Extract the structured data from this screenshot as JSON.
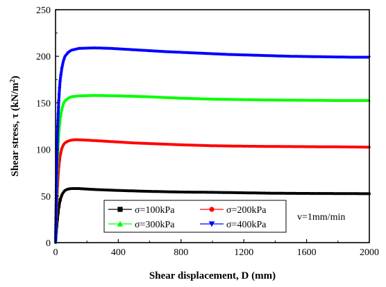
{
  "chart_data": {
    "type": "scatter",
    "xlabel": "Shear displacement, D (mm)",
    "ylabel_prefix": "Shear stress, τ (kN/m",
    "ylabel_sup": "2",
    "ylabel_suffix": ")",
    "xlim": [
      0,
      2000
    ],
    "ylim": [
      0,
      250
    ],
    "xticks": [
      0,
      400,
      800,
      1200,
      1600,
      2000
    ],
    "yticks": [
      0,
      50,
      100,
      150,
      200,
      250
    ],
    "grid": false,
    "legend_position": "bottom-center",
    "annotation": "v=1mm/min",
    "series": [
      {
        "name": "σ=100kPa",
        "color": "#000000",
        "marker": "square",
        "points": [
          [
            0,
            0
          ],
          [
            5,
            12
          ],
          [
            10,
            22
          ],
          [
            15,
            30
          ],
          [
            20,
            37
          ],
          [
            25,
            42
          ],
          [
            30,
            46
          ],
          [
            40,
            51
          ],
          [
            50,
            54
          ],
          [
            60,
            56
          ],
          [
            80,
            57.5
          ],
          [
            100,
            58
          ],
          [
            150,
            58
          ],
          [
            250,
            57
          ],
          [
            400,
            56
          ],
          [
            600,
            55
          ],
          [
            800,
            54.3
          ],
          [
            1000,
            54
          ],
          [
            1200,
            53.5
          ],
          [
            1400,
            53
          ],
          [
            1600,
            52.8
          ],
          [
            1800,
            52.7
          ],
          [
            2000,
            52.5
          ]
        ]
      },
      {
        "name": "σ=200kPa",
        "color": "#ff0000",
        "marker": "circle",
        "points": [
          [
            0,
            0
          ],
          [
            5,
            25
          ],
          [
            10,
            50
          ],
          [
            15,
            68
          ],
          [
            20,
            80
          ],
          [
            25,
            88
          ],
          [
            30,
            94
          ],
          [
            40,
            101
          ],
          [
            50,
            105
          ],
          [
            60,
            107
          ],
          [
            80,
            109
          ],
          [
            100,
            110
          ],
          [
            130,
            110.5
          ],
          [
            200,
            110
          ],
          [
            300,
            109
          ],
          [
            500,
            107
          ],
          [
            800,
            105
          ],
          [
            1000,
            104
          ],
          [
            1200,
            103.5
          ],
          [
            1400,
            103.2
          ],
          [
            1600,
            103
          ],
          [
            1800,
            102.8
          ],
          [
            2000,
            102.5
          ]
        ]
      },
      {
        "name": "σ=300kPa",
        "color": "#00ff00",
        "marker": "triangle-up",
        "points": [
          [
            0,
            0
          ],
          [
            5,
            40
          ],
          [
            10,
            75
          ],
          [
            15,
            100
          ],
          [
            20,
            115
          ],
          [
            25,
            126
          ],
          [
            30,
            134
          ],
          [
            40,
            143
          ],
          [
            50,
            149
          ],
          [
            60,
            152
          ],
          [
            80,
            155
          ],
          [
            100,
            156.5
          ],
          [
            150,
            157.5
          ],
          [
            250,
            158
          ],
          [
            400,
            157.5
          ],
          [
            600,
            156.5
          ],
          [
            800,
            155
          ],
          [
            1000,
            154
          ],
          [
            1200,
            153.5
          ],
          [
            1400,
            153
          ],
          [
            1600,
            152.8
          ],
          [
            1800,
            152.5
          ],
          [
            2000,
            152.5
          ]
        ]
      },
      {
        "name": "σ=400kPa",
        "color": "#0000ff",
        "marker": "triangle-down",
        "points": [
          [
            0,
            0
          ],
          [
            5,
            55
          ],
          [
            10,
            100
          ],
          [
            15,
            130
          ],
          [
            20,
            150
          ],
          [
            25,
            165
          ],
          [
            30,
            175
          ],
          [
            40,
            187
          ],
          [
            50,
            195
          ],
          [
            60,
            200
          ],
          [
            80,
            204
          ],
          [
            100,
            206.5
          ],
          [
            150,
            208.5
          ],
          [
            250,
            209
          ],
          [
            350,
            208.5
          ],
          [
            500,
            207
          ],
          [
            700,
            205
          ],
          [
            900,
            203.5
          ],
          [
            1100,
            202
          ],
          [
            1300,
            201
          ],
          [
            1500,
            200
          ],
          [
            1700,
            199.5
          ],
          [
            1900,
            199
          ],
          [
            2000,
            199
          ]
        ]
      }
    ]
  }
}
